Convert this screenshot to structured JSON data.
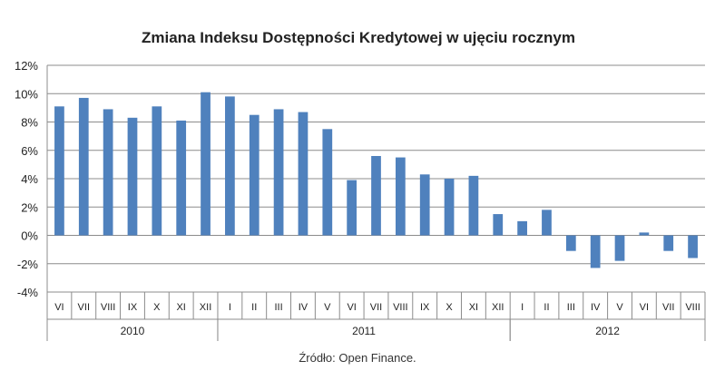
{
  "chart_data": {
    "type": "bar",
    "title": "Zmiana Indeksu Dostępności Kredytowej w ujęciu rocznym",
    "ylim": [
      -4,
      12
    ],
    "y_ticks": [
      "12%",
      "10%",
      "8%",
      "6%",
      "4%",
      "2%",
      "0%",
      "-2%",
      "-4%"
    ],
    "y_tick_values": [
      12,
      10,
      8,
      6,
      4,
      2,
      0,
      -2,
      -4
    ],
    "grid": true,
    "color": "#4f81bd",
    "categories": [
      "VI",
      "VII",
      "VIII",
      "IX",
      "X",
      "XI",
      "XII",
      "I",
      "II",
      "III",
      "IV",
      "V",
      "VI",
      "VII",
      "VIII",
      "IX",
      "X",
      "XI",
      "XII",
      "I",
      "II",
      "III",
      "IV",
      "V",
      "VI",
      "VII",
      "VIII"
    ],
    "values": [
      9.1,
      9.7,
      8.9,
      8.3,
      9.1,
      8.1,
      10.1,
      9.8,
      8.5,
      8.9,
      8.7,
      7.5,
      3.9,
      5.6,
      5.5,
      4.3,
      4.0,
      4.2,
      1.5,
      1.0,
      1.8,
      -1.1,
      -2.3,
      -1.8,
      0.2,
      -1.1,
      -1.6
    ],
    "years": [
      {
        "label": "2010",
        "start": 0,
        "count": 7
      },
      {
        "label": "2011",
        "start": 7,
        "count": 12
      },
      {
        "label": "2012",
        "start": 19,
        "count": 8
      }
    ]
  },
  "source": "Źródło: Open Finance."
}
